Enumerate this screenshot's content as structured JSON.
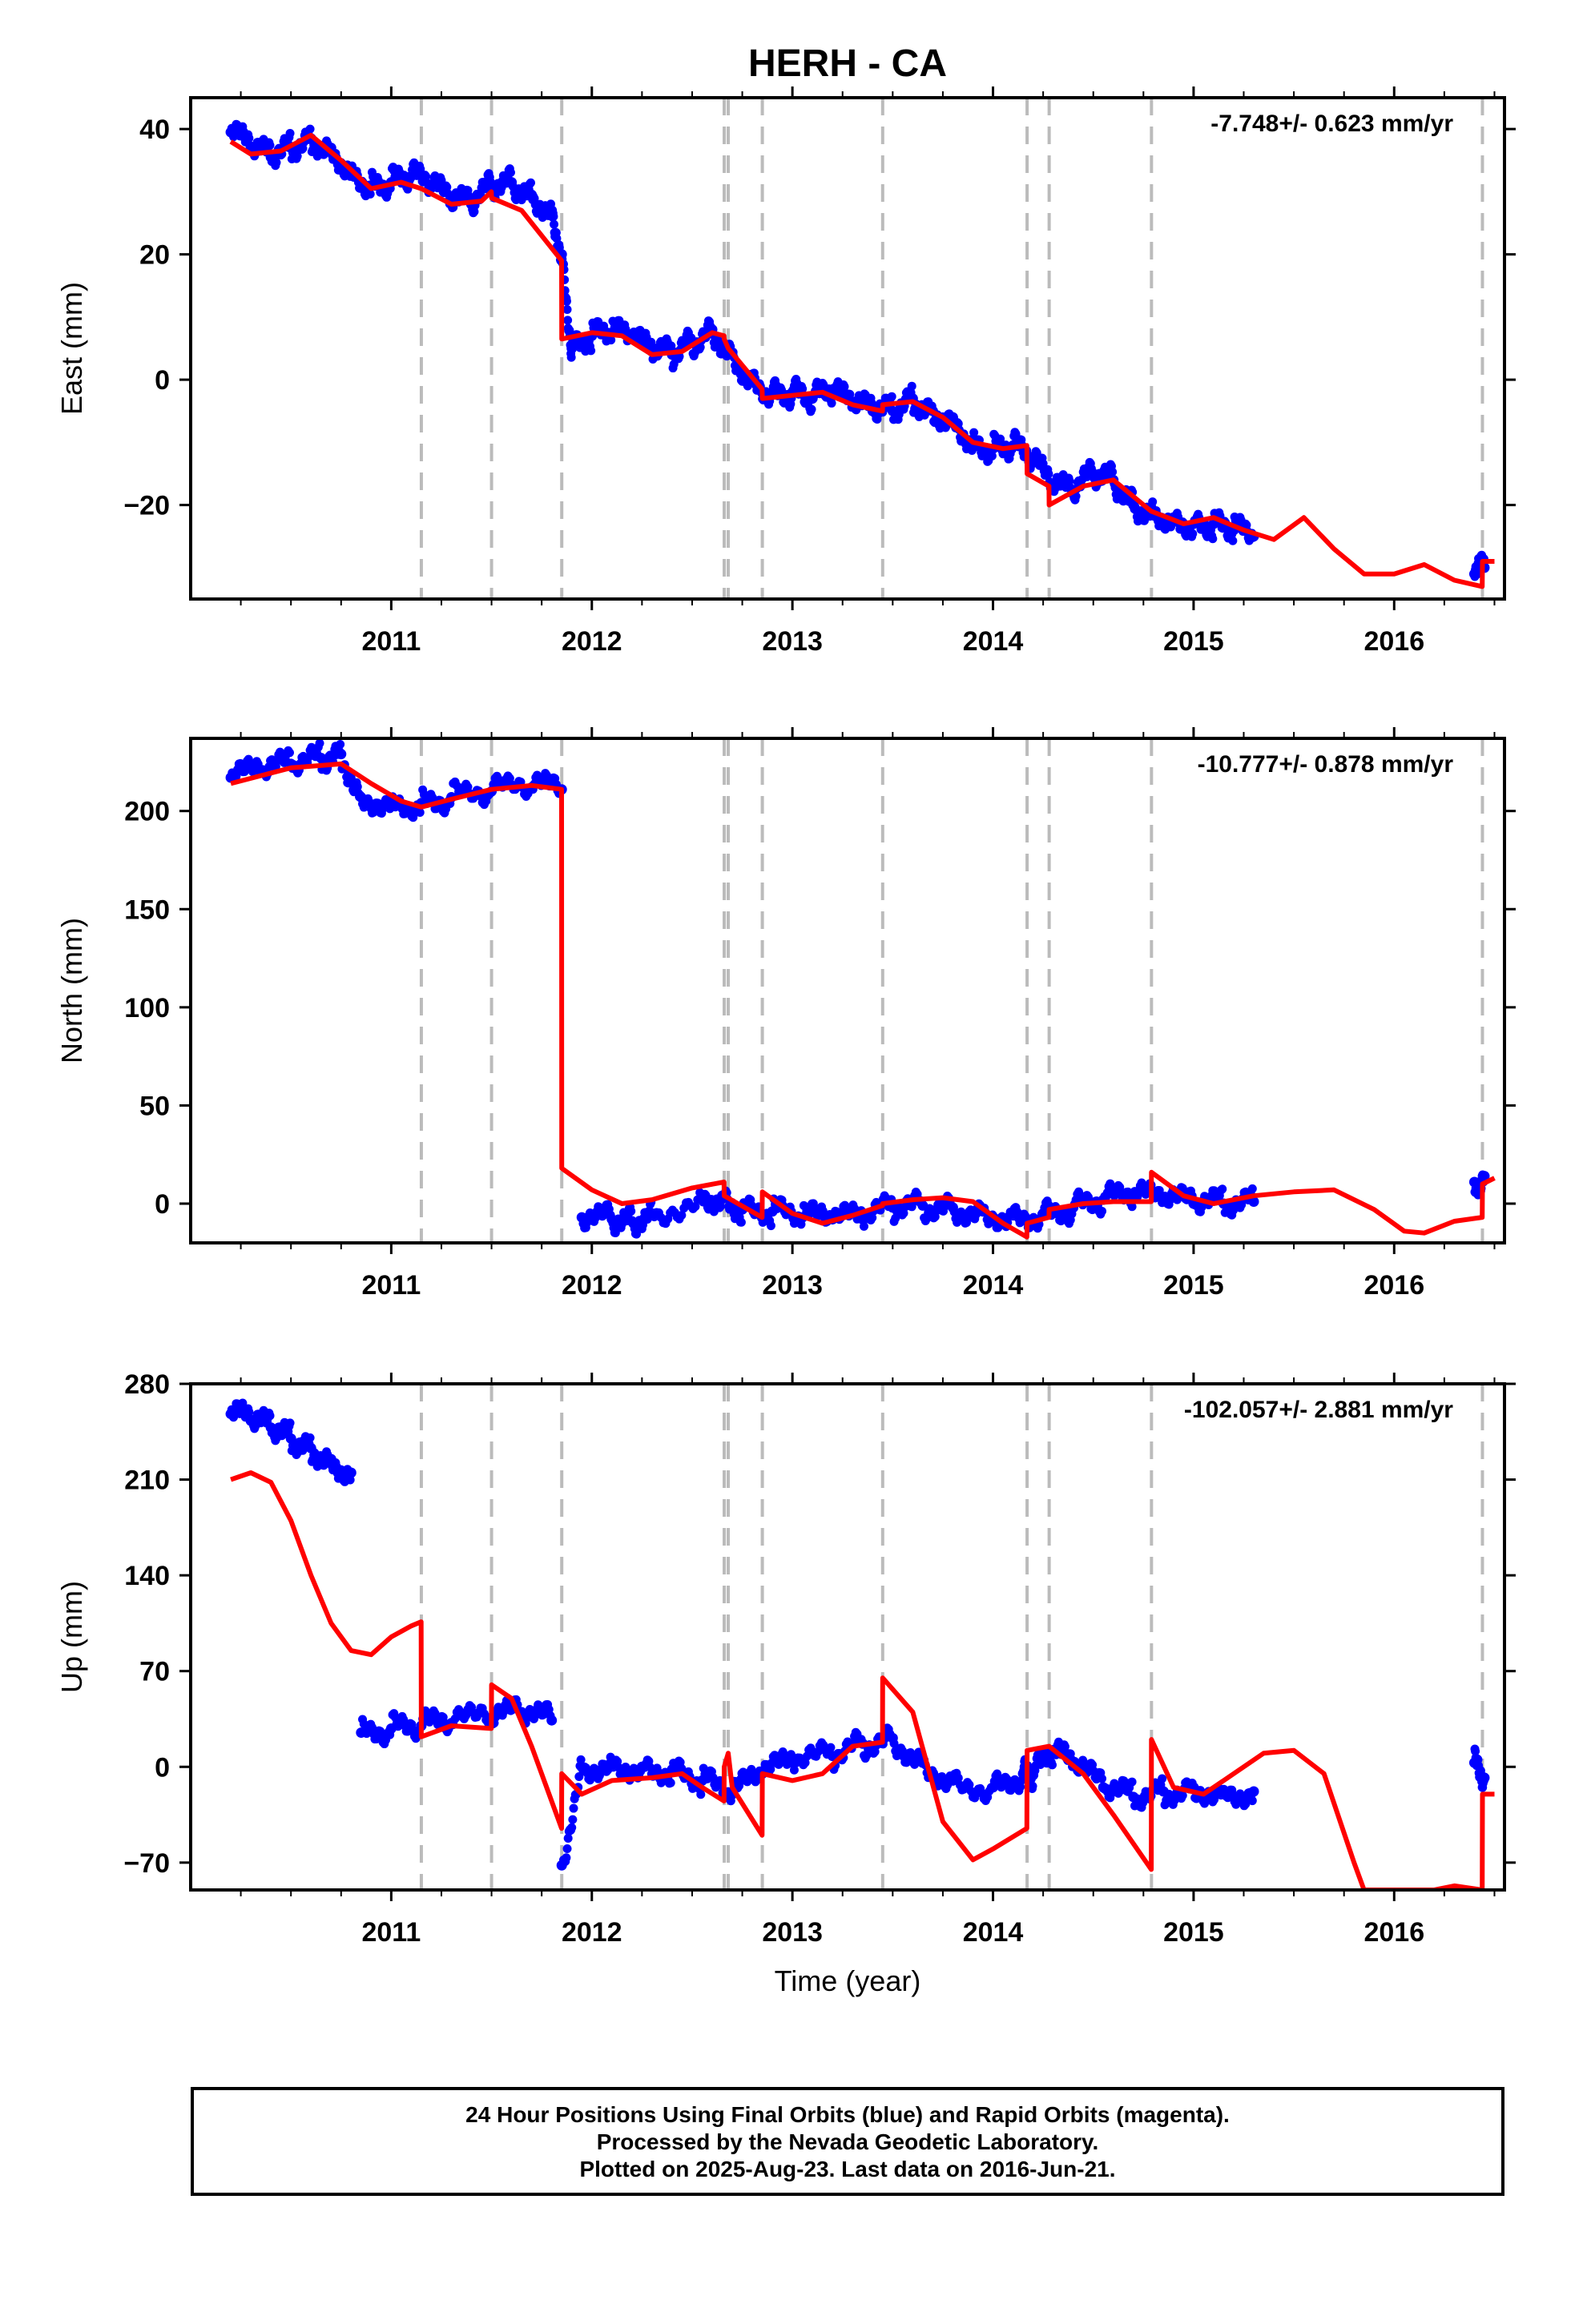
{
  "chart_data": {
    "type": "scatter",
    "title": "HERH - CA",
    "xlabel": "Time (year)",
    "x_ticks": [
      "2011",
      "2012",
      "2013",
      "2014",
      "2015",
      "2016"
    ],
    "xlim": [
      2010.0,
      2016.55
    ],
    "event_lines": [
      2011.15,
      2011.5,
      2011.85,
      2012.66,
      2012.68,
      2012.85,
      2013.45,
      2014.17,
      2014.28,
      2014.79,
      2016.44
    ],
    "panels": [
      {
        "ylabel": "East (mm)",
        "rate": "-7.748+/- 0.623 mm/yr",
        "ylim": [
          -35,
          45
        ],
        "yticks": [
          40,
          20,
          0,
          -20
        ],
        "series": [
          {
            "role": "daily positions",
            "color": "#0000ff",
            "x": [
              2010.2,
              2010.3,
              2010.4,
              2010.5,
              2010.6,
              2010.7,
              2010.8,
              2010.9,
              2011.0,
              2011.1,
              2011.2,
              2011.3,
              2011.4,
              2011.5,
              2011.6,
              2011.7,
              2011.8,
              2011.85,
              2011.9,
              2012.0,
              2012.1,
              2012.2,
              2012.3,
              2012.4,
              2012.5,
              2012.6,
              2012.7,
              2012.8,
              2012.9,
              2013.0,
              2013.1,
              2013.2,
              2013.3,
              2013.4,
              2013.5,
              2013.6,
              2013.7,
              2013.8,
              2013.9,
              2014.0,
              2014.1,
              2014.2,
              2014.3,
              2014.4,
              2014.5,
              2014.6,
              2014.7,
              2014.8,
              2014.9,
              2015.0,
              2015.1,
              2015.2,
              2015.3,
              2016.4,
              2016.45
            ],
            "y": [
              39.5,
              37,
              35.5,
              37,
              38.5,
              37,
              33.5,
              31,
              31.5,
              32.5,
              31,
              28.5,
              28,
              31,
              31.5,
              29.5,
              27,
              20,
              5,
              7,
              7.5,
              6.5,
              4.5,
              4,
              6,
              8,
              4,
              0,
              -2,
              -2,
              -3,
              -2,
              -4,
              -5,
              -5,
              -3,
              -5,
              -6,
              -10,
              -11,
              -10.5,
              -13,
              -17,
              -18,
              -15,
              -16,
              -20,
              -21,
              -22,
              -23,
              -23,
              -24,
              -25,
              -31,
              -30
            ]
          },
          {
            "role": "model fit",
            "color": "#ff0000",
            "x": [
              2010.2,
              2010.3,
              2010.45,
              2010.6,
              2010.75,
              2010.9,
              2011.05,
              2011.149,
              2011.15,
              2011.3,
              2011.45,
              2011.499,
              2011.5,
              2011.65,
              2011.849,
              2011.85,
              2012.0,
              2012.15,
              2012.3,
              2012.45,
              2012.6,
              2012.659,
              2012.66,
              2012.68,
              2012.849,
              2012.85,
              2013.0,
              2013.15,
              2013.3,
              2013.449,
              2013.45,
              2013.6,
              2013.75,
              2013.9,
              2014.05,
              2014.169,
              2014.17,
              2014.279,
              2014.28,
              2014.45,
              2014.6,
              2014.789,
              2014.79,
              2014.95,
              2015.1,
              2015.25,
              2015.4,
              2015.55,
              2015.7,
              2015.85,
              2016.0,
              2016.15,
              2016.3,
              2016.439,
              2016.44,
              2016.5
            ],
            "y": [
              38,
              36,
              36.5,
              39,
              35,
              30.5,
              31.5,
              30.5,
              30.5,
              28,
              28.5,
              30,
              29,
              27,
              19,
              6.5,
              7.5,
              7,
              4,
              4.5,
              7.5,
              7,
              6.5,
              5,
              -1.5,
              -3,
              -2.5,
              -2,
              -4,
              -5,
              -4,
              -3.5,
              -6,
              -10,
              -11,
              -10.5,
              -15,
              -17,
              -20,
              -17,
              -16,
              -21,
              -21,
              -23,
              -22,
              -24,
              -25.5,
              -22,
              -27,
              -31,
              -31,
              -29.5,
              -32,
              -33,
              -29,
              -29
            ]
          }
        ]
      },
      {
        "ylabel": "North (mm)",
        "rate": "-10.777+/- 0.878 mm/yr",
        "ylim": [
          -20,
          237
        ],
        "yticks": [
          200,
          150,
          100,
          50,
          0
        ],
        "series": [
          {
            "role": "daily positions",
            "color": "#0000ff",
            "x": [
              2010.2,
              2010.35,
              2010.5,
              2010.65,
              2010.75,
              2010.85,
              2011.0,
              2011.15,
              2011.3,
              2011.5,
              2011.7,
              2011.85,
              2011.95,
              2012.1,
              2012.2,
              2012.3,
              2012.55,
              2012.65,
              2012.75,
              2012.9,
              2013.05,
              2013.2,
              2013.35,
              2013.5,
              2013.65,
              2013.8,
              2013.95,
              2014.1,
              2014.25,
              2014.4,
              2014.55,
              2014.7,
              2014.85,
              2015.0,
              2015.15,
              2015.3,
              2016.4,
              2016.45
            ],
            "y": [
              217,
              220,
              224,
              227,
              229,
              207,
              205,
              204,
              207,
              210,
              212,
              211,
              -7,
              -8,
              -9,
              -5,
              3,
              4,
              -3,
              -4,
              -7,
              -8,
              -8,
              -2,
              -1,
              -2,
              -4,
              -6,
              -5,
              -2,
              2,
              4,
              2,
              0,
              0,
              1,
              11,
              14
            ]
          },
          {
            "role": "model fit",
            "color": "#ff0000",
            "x": [
              2010.2,
              2010.35,
              2010.5,
              2010.75,
              2010.9,
              2011.05,
              2011.15,
              2011.3,
              2011.5,
              2011.7,
              2011.849,
              2011.85,
              2012.0,
              2012.15,
              2012.3,
              2012.5,
              2012.659,
              2012.66,
              2012.849,
              2012.85,
              2013.0,
              2013.15,
              2013.3,
              2013.449,
              2013.45,
              2013.6,
              2013.75,
              2013.9,
              2014.05,
              2014.169,
              2014.17,
              2014.279,
              2014.28,
              2014.45,
              2014.6,
              2014.789,
              2014.79,
              2014.95,
              2015.1,
              2015.3,
              2015.5,
              2015.7,
              2015.9,
              2016.05,
              2016.15,
              2016.3,
              2016.439,
              2016.44,
              2016.5
            ],
            "y": [
              214,
              218,
              222,
              224,
              214,
              205,
              202,
              206,
              211,
              213,
              211,
              18,
              7,
              0,
              2,
              8,
              11,
              4,
              -7,
              6,
              -5,
              -10,
              -6,
              -1,
              0,
              2,
              3,
              1,
              -10,
              -17,
              -10,
              -7,
              -3,
              0,
              1,
              1,
              16,
              4,
              0,
              4,
              6,
              7,
              -3,
              -14,
              -15,
              -9,
              -7,
              10,
              13
            ]
          }
        ]
      },
      {
        "ylabel": "Up (mm)",
        "rate": "-102.057+/- 2.881 mm/yr",
        "ylim": [
          -90,
          280
        ],
        "yticks": [
          280,
          210,
          140,
          70,
          0,
          -70
        ],
        "series": [
          {
            "role": "daily positions",
            "color": "#0000ff",
            "x": [
              2010.2,
              2010.3,
              2010.4,
              2010.5,
              2010.6,
              2010.7,
              2010.8,
              2010.85,
              2011.0,
              2011.15,
              2011.3,
              2011.5,
              2011.65,
              2011.8,
              2011.85,
              2011.95,
              2012.1,
              2012.25,
              2012.4,
              2012.55,
              2012.7,
              2012.85,
              2013.0,
              2013.2,
              2013.35,
              2013.5,
              2013.65,
              2013.8,
              2014.0,
              2014.15,
              2014.2,
              2014.3,
              2014.4,
              2014.55,
              2014.7,
              2014.85,
              2015.0,
              2015.15,
              2015.3,
              2016.4,
              2016.45
            ],
            "y": [
              258,
              253,
              248,
              240,
              233,
              225,
              215,
              25,
              28,
              30,
              32,
              36,
              40,
              34,
              -72,
              0,
              3,
              0,
              -2,
              -10,
              -20,
              -5,
              3,
              8,
              17,
              21,
              3,
              -10,
              -15,
              -5,
              -6,
              10,
              2,
              -15,
              -22,
              -18,
              -15,
              -17,
              -18,
              3,
              -8
            ]
          },
          {
            "role": "model fit",
            "color": "#ff0000",
            "x": [
              2010.2,
              2010.3,
              2010.4,
              2010.5,
              2010.6,
              2010.7,
              2010.8,
              2010.9,
              2011.0,
              2011.1,
              2011.149,
              2011.15,
              2011.3,
              2011.499,
              2011.5,
              2011.6,
              2011.7,
              2011.849,
              2011.85,
              2011.95,
              2012.1,
              2012.3,
              2012.45,
              2012.55,
              2012.659,
              2012.66,
              2012.68,
              2012.7,
              2012.849,
              2012.85,
              2013.0,
              2013.15,
              2013.3,
              2013.449,
              2013.45,
              2013.6,
              2013.75,
              2013.9,
              2014.0,
              2014.169,
              2014.17,
              2014.279,
              2014.28,
              2014.45,
              2014.6,
              2014.789,
              2014.79,
              2014.9,
              2015.05,
              2015.2,
              2015.35,
              2015.5,
              2015.65,
              2015.8,
              2015.85,
              2016.2,
              2016.3,
              2016.439,
              2016.44,
              2016.5
            ],
            "y": [
              210,
              215,
              208,
              180,
              140,
              105,
              85,
              82,
              95,
              103,
              106,
              22,
              30,
              28,
              60,
              50,
              15,
              -45,
              -5,
              -20,
              -10,
              -8,
              -5,
              -15,
              -25,
              0,
              10,
              -15,
              -50,
              -5,
              -10,
              -5,
              15,
              18,
              65,
              40,
              -40,
              -68,
              -60,
              -45,
              12,
              15,
              15,
              -5,
              -35,
              -75,
              20,
              -15,
              -20,
              -5,
              10,
              12,
              -5,
              -70,
              -90,
              -90,
              -87,
              -90,
              -20,
              -20
            ]
          }
        ]
      }
    ]
  },
  "footer": {
    "line1": "24 Hour Positions Using Final Orbits (blue) and Rapid Orbits (magenta).",
    "line2": "Processed by the Nevada Geodetic Laboratory.",
    "line3": "Plotted on 2025-Aug-23. Last data on 2016-Jun-21."
  }
}
